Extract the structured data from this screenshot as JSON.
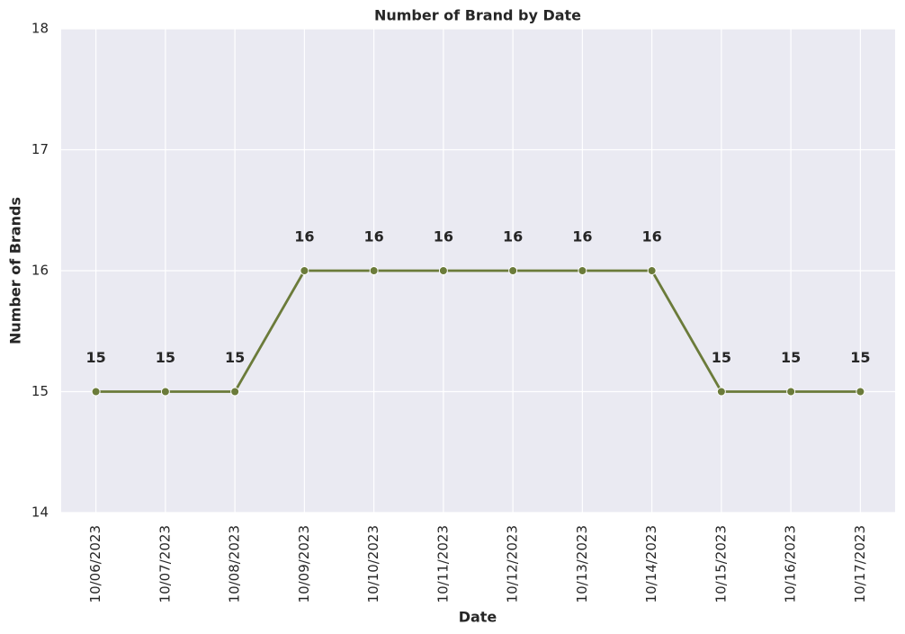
{
  "chart_data": {
    "type": "line",
    "title": "Number of Brand by Date",
    "x_label": "Date",
    "y_label": "Number of Brands",
    "categories": [
      "10/06/2023",
      "10/07/2023",
      "10/08/2023",
      "10/09/2023",
      "10/10/2023",
      "10/11/2023",
      "10/12/2023",
      "10/13/2023",
      "10/14/2023",
      "10/15/2023",
      "10/16/2023",
      "10/17/2023"
    ],
    "values": [
      15,
      15,
      15,
      16,
      16,
      16,
      16,
      16,
      16,
      15,
      15,
      15
    ],
    "color": "#6b7b3a",
    "ylim": [
      14,
      18
    ],
    "yticks": [
      14,
      15,
      16,
      17,
      18
    ],
    "grid": true
  }
}
